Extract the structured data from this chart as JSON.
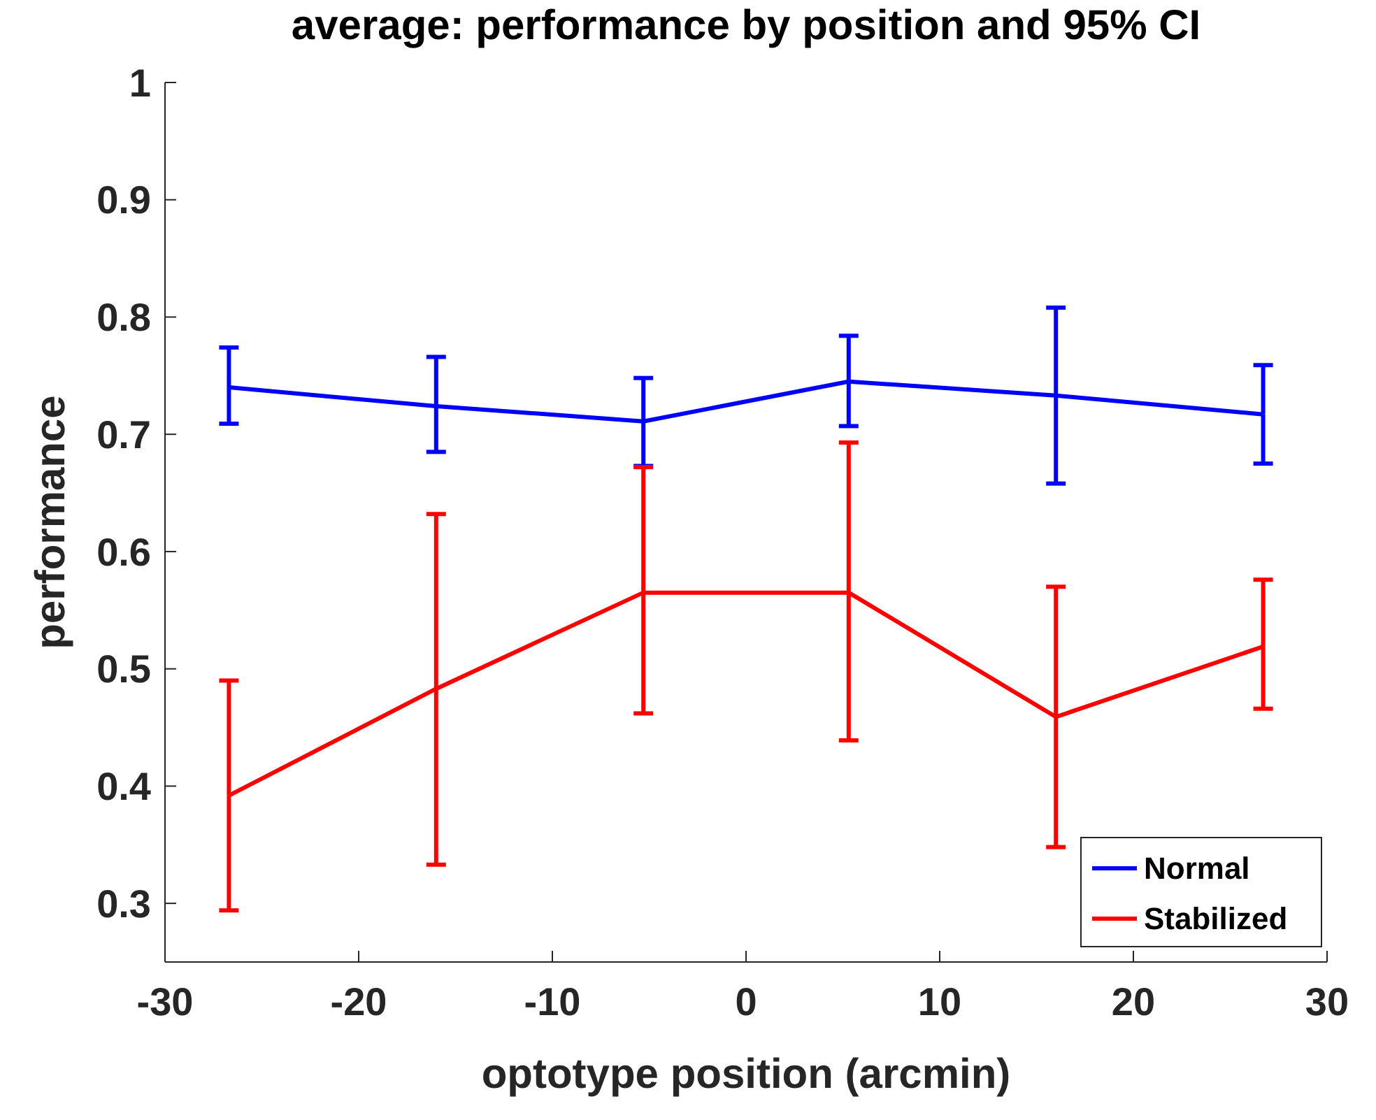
{
  "chart_data": {
    "type": "line",
    "title": "average: performance by position and 95% CI",
    "xlabel": "optotype position (arcmin)",
    "ylabel": "performance",
    "x": [
      -26.7,
      -16,
      -5.3,
      5.3,
      16,
      26.7
    ],
    "series": [
      {
        "name": "Normal",
        "color": "#0000ff",
        "values": [
          0.74,
          0.724,
          0.711,
          0.745,
          0.733,
          0.717
        ],
        "errors": [
          [
            0.709,
            0.774
          ],
          [
            0.685,
            0.766
          ],
          [
            0.673,
            0.748
          ],
          [
            0.707,
            0.784
          ],
          [
            0.658,
            0.808
          ],
          [
            0.675,
            0.759
          ]
        ]
      },
      {
        "name": "Stabilized",
        "color": "#ff0000",
        "values": [
          0.392,
          0.483,
          0.565,
          0.565,
          0.459,
          0.519
        ],
        "errors": [
          [
            0.294,
            0.49
          ],
          [
            0.333,
            0.632
          ],
          [
            0.462,
            0.672
          ],
          [
            0.439,
            0.693
          ],
          0.111,
          [
            0.466,
            0.576
          ]
        ]
      }
    ],
    "xlim": [
      -30,
      30
    ],
    "xticks": [
      -30,
      -20,
      -10,
      0,
      10,
      20,
      30
    ],
    "ylim": [
      0.25,
      1
    ],
    "yticks": [
      0.3,
      0.4,
      0.5,
      0.6,
      0.7,
      0.8,
      0.9,
      1
    ],
    "grid": false,
    "legend": "bottom right",
    "marker": "none",
    "line_style": "solid"
  }
}
